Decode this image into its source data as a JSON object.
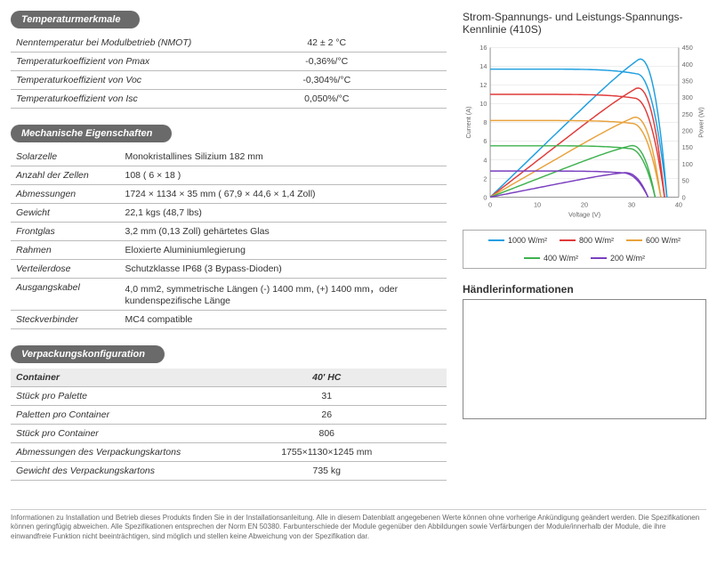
{
  "temp": {
    "header": "Temperaturmerkmale",
    "rows": [
      {
        "label": "Nenntemperatur bei Modulbetrieb (NMOT)",
        "value": "42 ± 2 °C"
      },
      {
        "label": "Temperaturkoeffizient von Pmax",
        "value": "-0,36%/°C"
      },
      {
        "label": "Temperaturkoeffizient von Voc",
        "value": "-0,304%/°C"
      },
      {
        "label": "Temperaturkoeffizient von Isc",
        "value": "0,050%/°C"
      }
    ]
  },
  "mech": {
    "header": "Mechanische Eigenschaften",
    "rows": [
      {
        "label": "Solarzelle",
        "value": "Monokristallines Silizium 182 mm"
      },
      {
        "label": "Anzahl der Zellen",
        "value": "108 ( 6 × 18 )"
      },
      {
        "label": "Abmessungen",
        "value": "1724 × 1134 × 35 mm ( 67,9 × 44,6 × 1,4  Zoll)"
      },
      {
        "label": "Gewicht",
        "value": "22,1 kgs  (48,7 lbs)"
      },
      {
        "label": "Frontglas",
        "value": "3,2 mm (0,13 Zoll) gehärtetes Glas"
      },
      {
        "label": "Rahmen",
        "value": "Eloxierte Aluminiumlegierung"
      },
      {
        "label": "Verteilerdose",
        "value": "Schutzklasse IP68 (3 Bypass-Dioden)"
      },
      {
        "label": "Ausgangskabel",
        "value": "4,0 mm2, symmetrische Längen (-) 1400 mm, (+) 1400 mm，oder kundenspezifische Länge"
      },
      {
        "label": "Steckverbinder",
        "value": "MC4 compatible"
      }
    ]
  },
  "pack": {
    "header": "Verpackungskonfiguration",
    "col1": "Container",
    "col2": "40' HC",
    "rows": [
      {
        "label": "Stück pro Palette",
        "value": "31"
      },
      {
        "label": "Paletten pro Container",
        "value": "26"
      },
      {
        "label": "Stück pro Container",
        "value": "806"
      },
      {
        "label": "Abmessungen des Verpackungskartons",
        "value": "1755×1130×1245 mm"
      },
      {
        "label": "Gewicht des Verpackungskartons",
        "value": "735 kg"
      }
    ]
  },
  "chart": {
    "title": "Strom-Spannungs- und Leistungs-Spannungs-Kennlinie (410S)",
    "xlabel": "Voltage (V)",
    "ylabel_left": "Current (A)",
    "ylabel_right": "Power (W)",
    "xlim": [
      0,
      40
    ],
    "xtick_step": 10,
    "ylim_left": [
      0,
      16
    ],
    "ytick_left_step": 2,
    "ylim_right": [
      0,
      450
    ],
    "ytick_right_step": 50,
    "grid_color": "#dddddd",
    "axis_color": "#888888",
    "label_color": "#666666",
    "label_fontsize": 8,
    "line_width": 1.6,
    "series": [
      {
        "name": "1000",
        "label": "1000 W/m²",
        "color": "#1f9fe0",
        "isc": 13.7,
        "voc": 37.5,
        "vmp": 31.0,
        "imp": 13.2,
        "pmax": 410
      },
      {
        "name": "800",
        "label": "800 W/m²",
        "color": "#e03a3a",
        "isc": 11.0,
        "voc": 37.0,
        "vmp": 30.5,
        "imp": 10.6,
        "pmax": 325
      },
      {
        "name": "600",
        "label": "600 W/m²",
        "color": "#e8a23c",
        "isc": 8.2,
        "voc": 36.2,
        "vmp": 30.0,
        "imp": 7.9,
        "pmax": 240
      },
      {
        "name": "400",
        "label": "400 W/m²",
        "color": "#3fb24f",
        "isc": 5.5,
        "voc": 35.0,
        "vmp": 29.5,
        "imp": 5.2,
        "pmax": 155
      },
      {
        "name": "200",
        "label": "200 W/m²",
        "color": "#7a3fbf",
        "isc": 2.8,
        "voc": 33.5,
        "vmp": 28.0,
        "imp": 2.6,
        "pmax": 75
      }
    ]
  },
  "dealer": {
    "title": "Händlerinformationen"
  },
  "footnote": "Informationen zu Installation und Betrieb dieses Produkts finden Sie in der Installationsanleitung. Alle in diesem Datenblatt angegebenen Werte können ohne vorherige Ankündigung geändert werden. Die Spezifikationen können geringfügig abweichen. Alle Spezifikationen entsprechen der Norm EN 50380. Farbunterschiede der Module gegenüber den Abbildungen sowie Verfärbungen der Module/innerhalb der Module, die ihre einwandfreie Funktion nicht beeinträchtigen, sind möglich und stellen keine Abweichung von der Spezifikation dar."
}
